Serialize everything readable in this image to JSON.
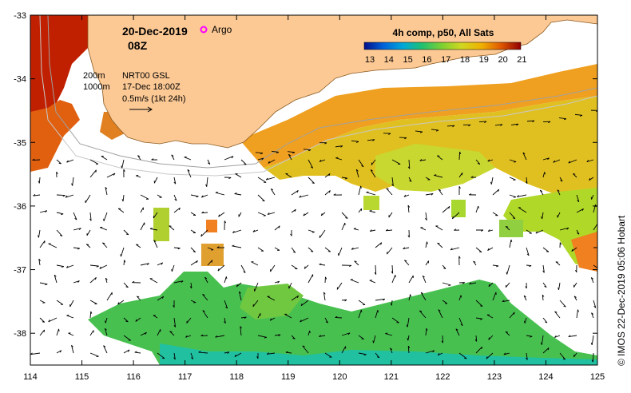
{
  "date": "20-Dec-2019",
  "hour": "08Z",
  "argo_label": "Argo",
  "product": {
    "name": "NRT00 GSL",
    "time": "17-Dec 18:00Z",
    "scale": "0.5m/s (1kt 24h)"
  },
  "isobaths": [
    "200m",
    "1000m"
  ],
  "colorbar": {
    "title": "4h comp, p50, All Sats",
    "ticks": [
      "13",
      "14",
      "15",
      "16",
      "17",
      "18",
      "19",
      "20",
      "21"
    ],
    "colors": [
      "#00108a",
      "#0050d0",
      "#0098e0",
      "#00c8c0",
      "#20c860",
      "#78d030",
      "#c0d820",
      "#f0c800",
      "#f09000",
      "#e05000",
      "#c01800",
      "#8a0000"
    ]
  },
  "credit": "© IMOS 22-Dec-2019 05:06 Hobart",
  "axes": {
    "x_ticks": [
      "114",
      "115",
      "116",
      "117",
      "118",
      "119",
      "120",
      "121",
      "122",
      "123",
      "124",
      "125"
    ],
    "y_ticks": [
      "-33",
      "-34",
      "-35",
      "-36",
      "-37",
      "-38"
    ],
    "lon_range": [
      114,
      125
    ],
    "lat_range": [
      -38.5,
      -33
    ]
  },
  "colors": {
    "land": "#fcc995",
    "no_data": "#ffffff"
  }
}
